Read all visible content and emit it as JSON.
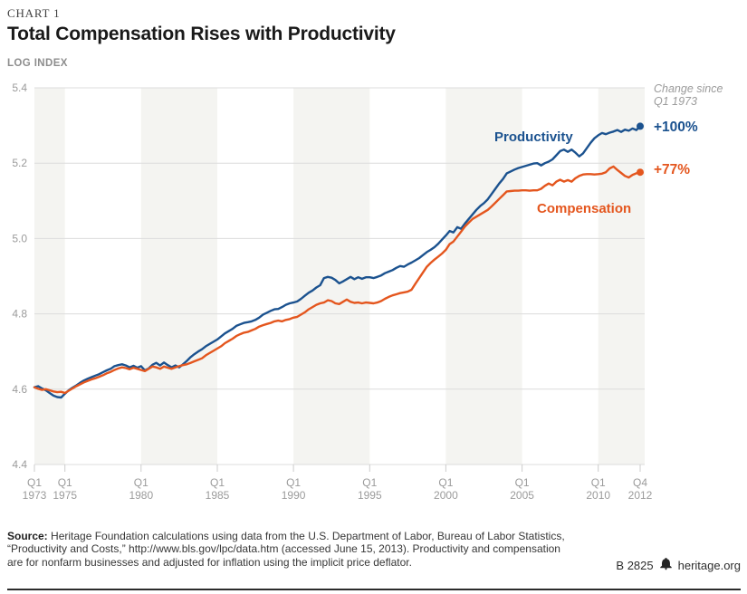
{
  "header": {
    "kicker": "CHART 1",
    "title": "Total Compensation Rises with Productivity",
    "axis_unit": "LOG INDEX"
  },
  "chart_data": {
    "type": "line",
    "title": "Total Compensation Rises with Productivity",
    "ylabel": "LOG INDEX",
    "xlabel": "",
    "ylim": [
      4.4,
      5.4
    ],
    "x_range": "Q1 1973 to Q4 2012, quarterly (160 points)",
    "grid": "horizontal gridlines, alternating shaded vertical 5-year bands",
    "legend_position": "labels on lines, change values at right edge",
    "y_ticks": [
      5.4,
      5.2,
      5.0,
      4.8,
      4.6,
      4.4
    ],
    "x_tick_labels": [
      {
        "q": 0,
        "line1": "Q1",
        "line2": "1973"
      },
      {
        "q": 8,
        "line1": "Q1",
        "line2": "1975"
      },
      {
        "q": 28,
        "line1": "Q1",
        "line2": "1980"
      },
      {
        "q": 48,
        "line1": "Q1",
        "line2": "1985"
      },
      {
        "q": 68,
        "line1": "Q1",
        "line2": "1990"
      },
      {
        "q": 88,
        "line1": "Q1",
        "line2": "1995"
      },
      {
        "q": 108,
        "line1": "Q1",
        "line2": "2000"
      },
      {
        "q": 128,
        "line1": "Q1",
        "line2": "2005"
      },
      {
        "q": 148,
        "line1": "Q1",
        "line2": "2010"
      },
      {
        "q": 159,
        "line1": "Q4",
        "line2": "2012"
      }
    ],
    "shaded_bands_quarters": [
      [
        0,
        8
      ],
      [
        28,
        48
      ],
      [
        68,
        88
      ],
      [
        108,
        128
      ],
      [
        148,
        159
      ]
    ],
    "annotations": {
      "change_since_line1": "Change since",
      "change_since_line2": "Q1 1973"
    },
    "series": [
      {
        "name": "Productivity",
        "color": "#1b528f",
        "end_label": "+100%",
        "values": [
          4.605,
          4.608,
          4.602,
          4.597,
          4.59,
          4.583,
          4.579,
          4.578,
          4.588,
          4.597,
          4.604,
          4.61,
          4.617,
          4.623,
          4.628,
          4.632,
          4.636,
          4.64,
          4.645,
          4.65,
          4.654,
          4.661,
          4.664,
          4.666,
          4.663,
          4.658,
          4.662,
          4.657,
          4.661,
          4.65,
          4.655,
          4.665,
          4.67,
          4.663,
          4.671,
          4.664,
          4.658,
          4.663,
          4.658,
          4.666,
          4.675,
          4.685,
          4.693,
          4.7,
          4.706,
          4.714,
          4.72,
          4.726,
          4.732,
          4.74,
          4.748,
          4.754,
          4.76,
          4.768,
          4.772,
          4.776,
          4.778,
          4.78,
          4.784,
          4.79,
          4.798,
          4.803,
          4.808,
          4.812,
          4.813,
          4.818,
          4.824,
          4.828,
          4.83,
          4.833,
          4.84,
          4.848,
          4.856,
          4.862,
          4.87,
          4.876,
          4.895,
          4.898,
          4.896,
          4.89,
          4.881,
          4.886,
          4.892,
          4.898,
          4.892,
          4.897,
          4.893,
          4.897,
          4.897,
          4.895,
          4.898,
          4.902,
          4.908,
          4.912,
          4.916,
          4.922,
          4.927,
          4.925,
          4.931,
          4.936,
          4.942,
          4.948,
          4.956,
          4.964,
          4.97,
          4.977,
          4.986,
          4.997,
          5.008,
          5.02,
          5.016,
          5.03,
          5.026,
          5.04,
          5.052,
          5.064,
          5.076,
          5.086,
          5.094,
          5.104,
          5.118,
          5.132,
          5.146,
          5.158,
          5.173,
          5.178,
          5.183,
          5.187,
          5.19,
          5.193,
          5.196,
          5.199,
          5.2,
          5.194,
          5.2,
          5.204,
          5.21,
          5.221,
          5.232,
          5.236,
          5.23,
          5.236,
          5.228,
          5.218,
          5.226,
          5.24,
          5.254,
          5.266,
          5.274,
          5.28,
          5.277,
          5.281,
          5.284,
          5.288,
          5.283,
          5.289,
          5.286,
          5.292,
          5.288,
          5.298
        ]
      },
      {
        "name": "Compensation",
        "color": "#e4561e",
        "end_label": "+77%",
        "values": [
          4.605,
          4.601,
          4.598,
          4.6,
          4.597,
          4.594,
          4.592,
          4.593,
          4.59,
          4.596,
          4.602,
          4.608,
          4.613,
          4.618,
          4.622,
          4.626,
          4.629,
          4.633,
          4.637,
          4.642,
          4.646,
          4.651,
          4.655,
          4.658,
          4.656,
          4.653,
          4.657,
          4.654,
          4.651,
          4.648,
          4.654,
          4.66,
          4.658,
          4.654,
          4.66,
          4.657,
          4.654,
          4.658,
          4.661,
          4.664,
          4.666,
          4.67,
          4.674,
          4.678,
          4.682,
          4.69,
          4.696,
          4.702,
          4.708,
          4.714,
          4.722,
          4.728,
          4.734,
          4.741,
          4.746,
          4.75,
          4.752,
          4.756,
          4.76,
          4.766,
          4.77,
          4.773,
          4.776,
          4.78,
          4.782,
          4.78,
          4.784,
          4.786,
          4.79,
          4.792,
          4.798,
          4.804,
          4.812,
          4.818,
          4.824,
          4.828,
          4.83,
          4.836,
          4.834,
          4.828,
          4.826,
          4.832,
          4.838,
          4.832,
          4.829,
          4.83,
          4.828,
          4.83,
          4.829,
          4.828,
          4.83,
          4.834,
          4.84,
          4.845,
          4.849,
          4.852,
          4.855,
          4.857,
          4.859,
          4.864,
          4.88,
          4.895,
          4.91,
          4.925,
          4.935,
          4.944,
          4.952,
          4.96,
          4.97,
          4.985,
          4.992,
          5.005,
          5.018,
          5.032,
          5.042,
          5.052,
          5.058,
          5.064,
          5.07,
          5.076,
          5.085,
          5.095,
          5.105,
          5.115,
          5.125,
          5.126,
          5.127,
          5.127,
          5.128,
          5.128,
          5.127,
          5.128,
          5.128,
          5.132,
          5.14,
          5.146,
          5.141,
          5.151,
          5.156,
          5.151,
          5.155,
          5.151,
          5.16,
          5.166,
          5.17,
          5.171,
          5.171,
          5.17,
          5.171,
          5.172,
          5.176,
          5.186,
          5.191,
          5.182,
          5.174,
          5.166,
          5.162,
          5.169,
          5.173,
          5.176
        ]
      }
    ]
  },
  "footer": {
    "source_label": "Source:",
    "source_text": " Heritage Foundation calculations using data from the U.S. Department of Labor, Bureau of Labor Statistics, “Productivity and Costs,” http://www.bls.gov/lpc/data.htm (accessed June 15, 2013). Productivity and compensation are for nonfarm businesses and adjusted for inflation using the implicit price deflator.",
    "code": "B 2825",
    "site": "heritage.org"
  }
}
